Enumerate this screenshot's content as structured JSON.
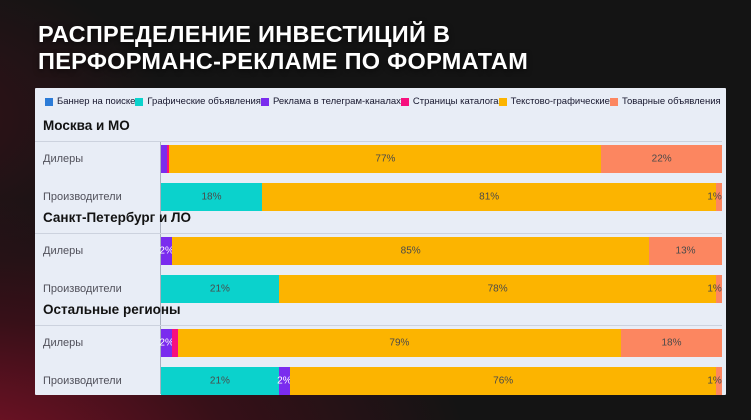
{
  "title": {
    "line1": "РАСПРЕДЕЛЕНИЕ ИНВЕСТИЦИЙ В",
    "line2": "ПЕРФОРМАНС-РЕКЛАМЕ ПО ФОРМАТАМ"
  },
  "colors": {
    "background": "#141414",
    "background_glow": "#6e1226",
    "panel": "#e8edf6",
    "title_text": "#ffffff",
    "legend_text": "#17172e",
    "group_header_text": "#121212",
    "row_label_text": "#50505a",
    "bar_label_dark": "#4a4a4a",
    "bar_label_light": "#ffffff",
    "divider": "#ccd2de",
    "axis": "#a9b0bf"
  },
  "chart_data": {
    "type": "bar",
    "orientation": "horizontal-stacked",
    "unit": "%",
    "legend_position": "top",
    "series": [
      "Баннер на поиске",
      "Графические объявления",
      "Реклама в телеграм-каналах",
      "Страницы каталога",
      "Текстово-графические",
      "Товарные объявления"
    ],
    "series_colors": {
      "Баннер на поиске": "#2b7bd7",
      "Графические объявления": "#0bd2cc",
      "Реклама в телеграм-каналах": "#7a2cee",
      "Страницы каталога": "#f7107e",
      "Текстово-графические": "#fcb400",
      "Товарные объявления": "#fc8660"
    },
    "groups": [
      {
        "name": "Москва и МО",
        "rows": [
          {
            "label": "Дилеры",
            "segments": [
              {
                "series": "Реклама в телеграм-каналах",
                "value": 1,
                "label": ""
              },
              {
                "series": "Страницы каталога",
                "value": 0.5,
                "label": ""
              },
              {
                "series": "Текстово-графические",
                "value": 77,
                "label": "77%"
              },
              {
                "series": "Товарные объявления",
                "value": 21.5,
                "label": "22%"
              }
            ]
          },
          {
            "label": "Производители",
            "segments": [
              {
                "series": "Графические объявления",
                "value": 18,
                "label": "18%"
              },
              {
                "series": "Текстово-графические",
                "value": 81,
                "label": "81%"
              },
              {
                "series": "Товарные объявления",
                "value": 1,
                "label": "1%"
              }
            ]
          }
        ]
      },
      {
        "name": "Санкт-Петербург и ЛО",
        "rows": [
          {
            "label": "Дилеры",
            "segments": [
              {
                "series": "Реклама в телеграм-каналах",
                "value": 2,
                "label": "2%"
              },
              {
                "series": "Текстово-графические",
                "value": 85,
                "label": "85%"
              },
              {
                "series": "Товарные объявления",
                "value": 13,
                "label": "13%"
              }
            ]
          },
          {
            "label": "Производители",
            "segments": [
              {
                "series": "Графические объявления",
                "value": 21,
                "label": "21%"
              },
              {
                "series": "Текстово-графические",
                "value": 78,
                "label": "78%"
              },
              {
                "series": "Товарные объявления",
                "value": 1,
                "label": "1%"
              }
            ]
          }
        ]
      },
      {
        "name": "Остальные регионы",
        "rows": [
          {
            "label": "Дилеры",
            "segments": [
              {
                "series": "Реклама в телеграм-каналах",
                "value": 2,
                "label": "2%"
              },
              {
                "series": "Страницы каталога",
                "value": 1,
                "label": ""
              },
              {
                "series": "Текстово-графические",
                "value": 79,
                "label": "79%"
              },
              {
                "series": "Товарные объявления",
                "value": 18,
                "label": "18%"
              }
            ]
          },
          {
            "label": "Производители",
            "segments": [
              {
                "series": "Графические объявления",
                "value": 21,
                "label": "21%"
              },
              {
                "series": "Реклама в телеграм-каналах",
                "value": 2,
                "label": "2%"
              },
              {
                "series": "Текстово-графические",
                "value": 76,
                "label": "76%"
              },
              {
                "series": "Товарные объявления",
                "value": 1,
                "label": "1%"
              }
            ]
          }
        ]
      }
    ]
  }
}
